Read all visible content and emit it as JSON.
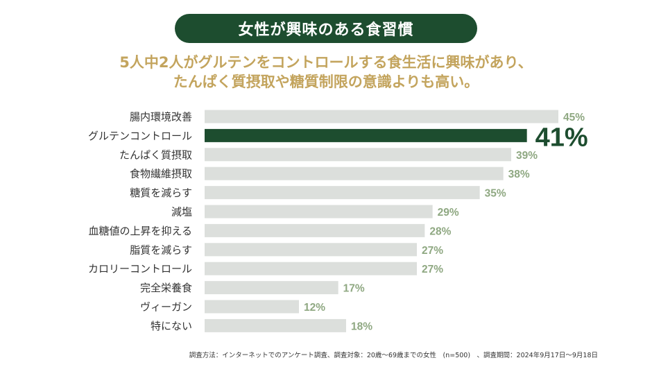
{
  "header": {
    "title": "女性が興味のある食習慣",
    "subtitle_line1": "5人中2人がグルテンをコントロールする食生活に興味があり、",
    "subtitle_line2": "たんぱく質摂取や糖質制限の意識よりも高い。"
  },
  "colors": {
    "title_bg": "#1d4d2f",
    "subtitle": "#c3a45d",
    "bar_default": "#dcdfdc",
    "bar_highlight": "#1d4d2f",
    "value_default": "#8fa882",
    "value_highlight": "#1d4d2f",
    "category_text": "#333333"
  },
  "chart_data": {
    "type": "bar",
    "orientation": "horizontal",
    "title": "女性が興味のある食習慣",
    "unit": "%",
    "xlim": [
      0,
      45
    ],
    "categories": [
      "腸内環境改善",
      "グルテンコントロール",
      "たんぱく質摂取",
      "食物繊維摂取",
      "糖質を減らす",
      "減塩",
      "血糖値の上昇を抑える",
      "脂質を減らす",
      "カロリーコントロール",
      "完全栄養食",
      "ヴィーガン",
      "特にない"
    ],
    "values": [
      45,
      41,
      39,
      38,
      35,
      29,
      28,
      27,
      27,
      17,
      12,
      18
    ],
    "value_labels": [
      "45%",
      "41%",
      "39%",
      "38%",
      "35%",
      "29%",
      "28%",
      "27%",
      "27%",
      "17%",
      "12%",
      "18%"
    ],
    "highlight_index": 1
  },
  "footnote": "調査方法：インターネットでのアンケート調査、調査対象：20歳〜69歳までの女性　(n=500)　、調査期間：2024年9月17日〜9月18日"
}
